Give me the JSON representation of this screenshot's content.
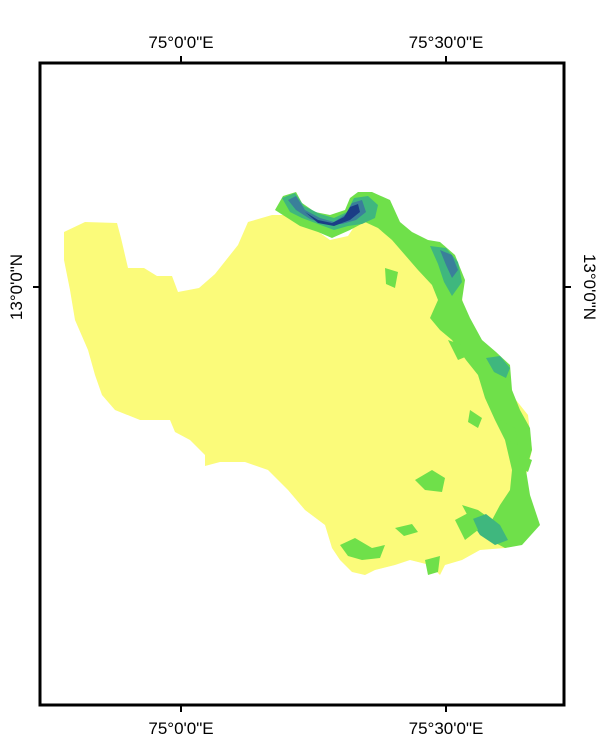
{
  "map": {
    "graticule_labels": {
      "top": [
        "75°0'0\"E",
        "75°30'0\"E"
      ],
      "bottom": [
        "75°0'0\"E",
        "75°30'0\"E"
      ],
      "left": [
        "13°0'0\"N"
      ],
      "right": [
        "13°0'0\"N"
      ]
    },
    "palette": {
      "lowland": "#fbfb7a",
      "low_mid": "#6fe04a",
      "mid": "#3fb77e",
      "high": "#3a7f9a",
      "peak": "#1b3d86",
      "frame": "#000000",
      "background": "#ffffff"
    }
  }
}
